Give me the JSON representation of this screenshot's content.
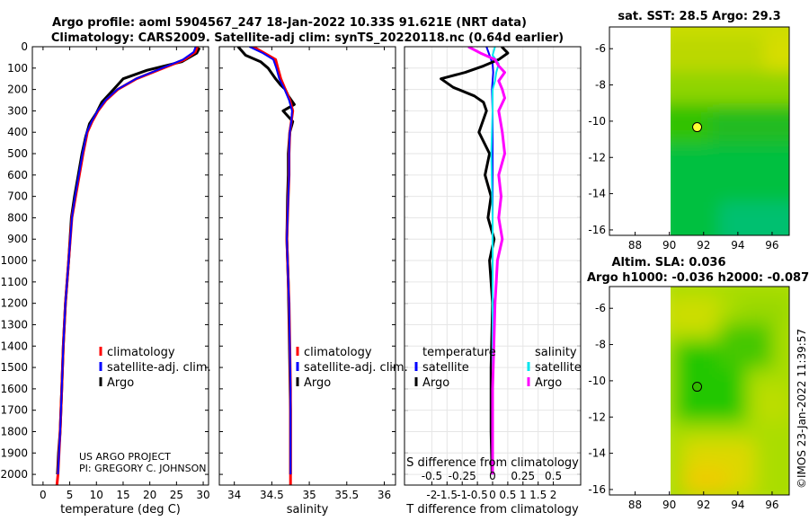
{
  "title": {
    "line1": "Argo profile: aoml 5904567_247 18-Jan-2022 10.33S 91.621E (NRT data)",
    "line2": "Climatology: CARS2009. Satellite-adj clim: synTS_20220118.nc (0.64d earlier)"
  },
  "depth_ticks": [
    "0",
    "100",
    "200",
    "300",
    "400",
    "500",
    "600",
    "700",
    "800",
    "900",
    "1000",
    "1100",
    "1200",
    "1300",
    "1400",
    "1500",
    "1600",
    "1700",
    "1800",
    "1900",
    "2000"
  ],
  "credit": {
    "line1": "US ARGO PROJECT",
    "line2": "PI: GREGORY C. JOHNSON"
  },
  "timestamp": "©IMOS 23-Jan-2022 11:39:57",
  "colors": {
    "climatology": "#ff0000",
    "satellite_adj": "#0000ff",
    "argo": "#000000",
    "sat_salinity": "#00e5ee",
    "argo_salinity": "#ff00ff"
  },
  "chart_data": [
    {
      "type": "line",
      "id": "temperature",
      "xlabel": "temperature (deg C)",
      "ylabel": "depth",
      "xlim": [
        -2,
        31
      ],
      "ylim": [
        2050,
        0
      ],
      "xticks": [
        "0",
        "5",
        "10",
        "15",
        "20",
        "25",
        "30"
      ],
      "legend": [
        "climatology",
        "satellite-adj. clim.",
        "Argo"
      ],
      "series": [
        {
          "name": "climatology",
          "x": [
            28.9,
            28.5,
            26.5,
            22.5,
            17.5,
            14.0,
            11.8,
            10.3,
            9.2,
            8.3,
            7.5,
            6.8,
            6.1,
            5.4,
            4.8,
            4.2,
            3.8,
            3.5,
            3.2,
            3.0,
            2.8,
            2.6
          ],
          "depth": [
            0,
            25,
            60,
            100,
            150,
            200,
            250,
            300,
            350,
            400,
            500,
            600,
            700,
            800,
            1000,
            1200,
            1400,
            1600,
            1800,
            1900,
            2000,
            2050
          ]
        },
        {
          "name": "satellite-adj. clim.",
          "x": [
            28.6,
            28.2,
            26.2,
            22.3,
            17.4,
            13.9,
            11.7,
            10.2,
            9.1,
            8.2,
            7.4,
            6.7,
            6.0,
            5.4,
            4.8,
            4.2,
            3.8,
            3.5,
            3.2,
            3.0,
            2.8
          ],
          "depth": [
            0,
            25,
            60,
            100,
            150,
            200,
            250,
            300,
            350,
            400,
            500,
            600,
            700,
            800,
            1000,
            1200,
            1400,
            1600,
            1800,
            1900,
            2000
          ]
        },
        {
          "name": "Argo",
          "x": [
            29.3,
            28.8,
            26.0,
            19.5,
            15.0,
            13.2,
            11.0,
            10.0,
            8.7,
            8.0,
            7.3,
            6.6,
            5.9,
            5.3,
            4.8,
            4.2,
            3.8,
            3.5,
            3.2,
            2.9,
            2.7
          ],
          "depth": [
            5,
            30,
            70,
            110,
            150,
            200,
            260,
            310,
            360,
            420,
            500,
            600,
            700,
            800,
            1000,
            1200,
            1400,
            1600,
            1800,
            1900,
            2000
          ]
        }
      ]
    },
    {
      "type": "line",
      "id": "salinity",
      "xlabel": "salinity",
      "xlim": [
        33.8,
        36.15
      ],
      "ylim": [
        2050,
        0
      ],
      "xticks": [
        "34",
        "34.5",
        "35",
        "35.5",
        "36"
      ],
      "legend": [
        "climatology",
        "satellite-adj. clim.",
        "Argo"
      ],
      "series": [
        {
          "name": "climatology",
          "x": [
            34.25,
            34.4,
            34.55,
            34.58,
            34.62,
            34.68,
            34.74,
            34.78,
            34.76,
            34.74,
            34.73,
            34.73,
            34.72,
            34.71,
            34.7,
            34.71,
            34.72,
            34.73,
            34.74,
            34.75,
            34.75,
            34.75,
            34.75
          ],
          "depth": [
            0,
            30,
            60,
            100,
            150,
            200,
            250,
            300,
            350,
            400,
            500,
            600,
            700,
            800,
            900,
            1000,
            1100,
            1200,
            1400,
            1600,
            1800,
            2000,
            2050
          ]
        },
        {
          "name": "satellite-adj. clim.",
          "x": [
            34.2,
            34.38,
            34.52,
            34.56,
            34.6,
            34.67,
            34.73,
            34.77,
            34.76,
            34.74,
            34.73,
            34.73,
            34.72,
            34.71,
            34.7,
            34.71,
            34.72,
            34.73,
            34.74,
            34.75,
            34.75,
            34.75
          ],
          "depth": [
            0,
            30,
            60,
            100,
            150,
            200,
            250,
            300,
            350,
            400,
            500,
            600,
            700,
            800,
            900,
            1000,
            1100,
            1200,
            1400,
            1600,
            1800,
            2000
          ]
        },
        {
          "name": "Argo",
          "x": [
            34.05,
            34.15,
            34.35,
            34.45,
            34.55,
            34.62,
            34.68,
            34.72,
            34.8,
            34.65,
            34.78,
            34.74,
            34.72,
            34.72,
            34.71,
            34.7,
            34.72,
            34.73,
            34.74,
            34.75,
            34.75,
            34.75
          ],
          "depth": [
            0,
            40,
            70,
            100,
            150,
            180,
            200,
            230,
            270,
            300,
            350,
            400,
            500,
            600,
            700,
            900,
            1100,
            1300,
            1500,
            1700,
            1900,
            2000
          ]
        }
      ]
    },
    {
      "type": "line",
      "id": "difference",
      "xlabel": "T difference from climatology",
      "xlabel_top": "S difference from climatology",
      "xlim": [
        -2.9,
        2.9
      ],
      "ylim": [
        2050,
        0
      ],
      "xticks": [
        "-2",
        "-1.5",
        "-1",
        "-0.5",
        "0",
        "0.5",
        "1",
        "1.5",
        "2"
      ],
      "xticks_top": [
        "-0.5",
        "-0.25",
        "0",
        "0.25",
        "0.5"
      ],
      "legend_title_left": "temperature",
      "legend_title_right": "salinity",
      "legend": [
        "satellite",
        "Argo",
        "satellite",
        "Argo"
      ],
      "series": [
        {
          "name": "T satellite",
          "x": [
            -0.2,
            -0.1,
            0.0,
            0.02,
            0.0,
            -0.02,
            0.0,
            0.0,
            0.0,
            0.0,
            0.0,
            0.0,
            0.0
          ],
          "depth": [
            0,
            40,
            80,
            120,
            160,
            200,
            300,
            500,
            800,
            1100,
            1400,
            1700,
            2000
          ]
        },
        {
          "name": "T Argo",
          "x": [
            0.3,
            0.5,
            0.2,
            -0.3,
            -0.9,
            -1.7,
            -1.3,
            -0.6,
            -0.3,
            -0.2,
            -0.45,
            -0.1,
            -0.25,
            -0.05,
            -0.15,
            0.05,
            -0.1,
            0.0,
            -0.05,
            -0.05,
            -0.02
          ],
          "depth": [
            0,
            30,
            60,
            90,
            120,
            150,
            190,
            230,
            260,
            300,
            400,
            500,
            600,
            700,
            800,
            900,
            1000,
            1200,
            1500,
            1800,
            2000
          ]
        },
        {
          "name": "S satellite",
          "x": [
            0.02,
            0.0,
            0.05,
            0.03,
            0.02,
            0.0,
            0.0,
            -0.01,
            0.0,
            0.0,
            0.0,
            0.0,
            0.0,
            0.0
          ],
          "depth": [
            0,
            40,
            80,
            120,
            160,
            200,
            300,
            500,
            800,
            1100,
            1300,
            1500,
            1800,
            2000
          ]
        },
        {
          "name": "S Argo",
          "x": [
            -0.2,
            -0.1,
            0.02,
            0.05,
            0.1,
            0.05,
            0.08,
            0.1,
            0.05,
            0.08,
            0.1,
            0.05,
            0.07,
            0.05,
            0.08,
            0.04,
            0.03,
            0.02,
            0.01,
            0.0,
            0.0,
            0.0
          ],
          "depth": [
            0,
            30,
            60,
            90,
            120,
            160,
            200,
            240,
            300,
            400,
            500,
            600,
            700,
            800,
            900,
            1000,
            1100,
            1200,
            1400,
            1600,
            1800,
            2000
          ]
        }
      ]
    },
    {
      "type": "heatmap",
      "id": "sst_map",
      "title": "sat. SST: 28.5 Argo: 29.3",
      "xlim": [
        86.5,
        97
      ],
      "ylim": [
        -16.3,
        -4.8
      ],
      "xticks": [
        "88",
        "90",
        "92",
        "94",
        "96"
      ],
      "yticks": [
        "-6",
        "-8",
        "-10",
        "-12",
        "-14",
        "-16"
      ],
      "data_xrange": [
        90,
        97
      ],
      "argo_position": {
        "lon": 91.621,
        "lat": -10.33
      }
    },
    {
      "type": "heatmap",
      "id": "sla_map",
      "title": "Altim. SLA: 0.036",
      "subtitle": "Argo h1000: -0.036 h2000: -0.087",
      "xlim": [
        86.5,
        97
      ],
      "ylim": [
        -16.3,
        -4.8
      ],
      "xticks": [
        "88",
        "90",
        "92",
        "94",
        "96"
      ],
      "yticks": [
        "-6",
        "-8",
        "-10",
        "-12",
        "-14",
        "-16"
      ],
      "data_xrange": [
        90,
        97
      ],
      "argo_position": {
        "lon": 91.621,
        "lat": -10.33
      }
    }
  ]
}
